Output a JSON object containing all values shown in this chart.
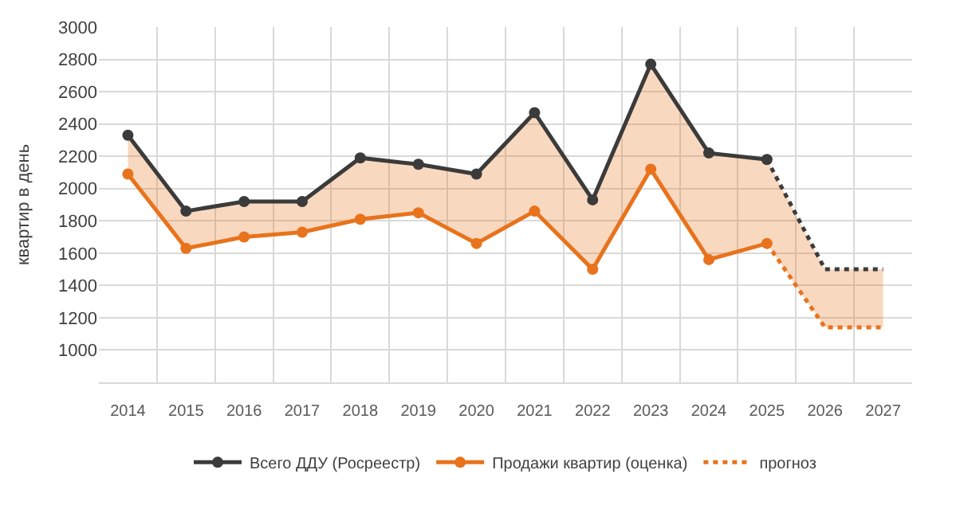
{
  "chart_data": {
    "type": "line",
    "ylabel": "квартир в день",
    "categories": [
      "2014",
      "2015",
      "2016",
      "2017",
      "2018",
      "2019",
      "2020",
      "2021",
      "2022",
      "2023",
      "2024",
      "2025",
      "2026",
      "2027"
    ],
    "series": [
      {
        "name": "Всего ДДУ (Росреестр)",
        "color": "#3b3b3b",
        "marker": "circle",
        "line_style": "solid",
        "values": [
          2330,
          1860,
          1920,
          1920,
          2190,
          2150,
          2090,
          2470,
          1930,
          2770,
          2220,
          2180,
          null,
          null
        ]
      },
      {
        "name": "Продажи квартир (оценка)",
        "color": "#e8731c",
        "marker": "circle",
        "line_style": "solid",
        "values": [
          2090,
          1630,
          1700,
          1730,
          1810,
          1850,
          1660,
          1860,
          1500,
          2120,
          1560,
          1660,
          null,
          null
        ],
        "lower": [
          2090,
          1630,
          1700,
          1730,
          1810,
          1850,
          1660,
          1860,
          1500,
          2120,
          1560,
          1660,
          1140,
          1140
        ],
        "upper": [
          2330,
          1860,
          1920,
          1920,
          2190,
          2150,
          2090,
          2470,
          1930,
          2770,
          2220,
          2180,
          1500,
          1500
        ]
      },
      {
        "color": "#3b3b3b",
        "marker": "none",
        "line_style": "dotted",
        "values": [
          null,
          null,
          null,
          null,
          null,
          null,
          null,
          null,
          null,
          null,
          null,
          2180,
          1500,
          1500
        ]
      },
      {
        "name": "прогноз",
        "color": "#e8731c",
        "marker": "none",
        "line_style": "dotted",
        "values": [
          null,
          null,
          null,
          null,
          null,
          null,
          null,
          null,
          null,
          null,
          null,
          1660,
          1140,
          1140
        ]
      }
    ],
    "ylim": [
      800,
      3000
    ],
    "yticks": [
      1000,
      1200,
      1400,
      1600,
      1800,
      2000,
      2200,
      2400,
      2600,
      2800,
      3000
    ],
    "grid": true,
    "legend": "bottom"
  }
}
